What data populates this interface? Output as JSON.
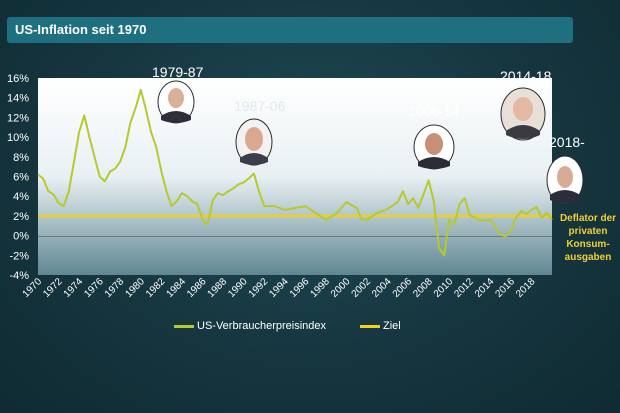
{
  "title": "US-Inflation seit 1970",
  "colors": {
    "cpi": "#b8c82e",
    "target": "#f0d020",
    "deflator_text": "#f0d030"
  },
  "annotations": [
    {
      "label": "1979-87",
      "icon": "portrait-icon"
    },
    {
      "label": "1987-06",
      "icon": "portrait-icon"
    },
    {
      "label": "2006-14",
      "icon": "portrait-icon"
    },
    {
      "label": "2014-18",
      "icon": "portrait-icon"
    },
    {
      "label": "2018-",
      "icon": "portrait-icon"
    }
  ],
  "deflator_note": "Deflator der privaten Konsum-ausgaben",
  "chart_data": {
    "type": "line",
    "title": "US-Inflation seit 1970",
    "xlabel": "",
    "ylabel": "",
    "xlim": [
      1970,
      2020
    ],
    "ylim": [
      -4,
      16
    ],
    "y_ticks": [
      -4,
      -2,
      0,
      2,
      4,
      6,
      8,
      10,
      12,
      14,
      16
    ],
    "y_tick_labels": [
      "-4%",
      "-2%",
      "0%",
      "2%",
      "4%",
      "6%",
      "8%",
      "10%",
      "12%",
      "14%",
      "16%"
    ],
    "x_ticks": [
      1970,
      1972,
      1974,
      1976,
      1978,
      1980,
      1982,
      1984,
      1986,
      1988,
      1990,
      1992,
      1994,
      1996,
      1998,
      2000,
      2002,
      2004,
      2006,
      2008,
      2010,
      2012,
      2014,
      2016,
      2018
    ],
    "x_tick_labels": [
      "1970",
      "1972",
      "1974",
      "1976",
      "1978",
      "1980",
      "1982",
      "1984",
      "1986",
      "1988",
      "1990",
      "1992",
      "1994",
      "1996",
      "1998",
      "2000",
      "2002",
      "2004",
      "2006",
      "2008",
      "2010",
      "2012",
      "2014",
      "2016",
      "2018"
    ],
    "grid": false,
    "legend_position": "bottom",
    "series": [
      {
        "name": "US-Verbraucherpreisindex",
        "x": [
          1970,
          1970.5,
          1971,
          1971.5,
          1972,
          1972.5,
          1973,
          1973.5,
          1974,
          1974.5,
          1975,
          1975.5,
          1976,
          1976.5,
          1977,
          1977.5,
          1978,
          1978.5,
          1979,
          1979.5,
          1980,
          1980.5,
          1981,
          1981.5,
          1982,
          1982.5,
          1983,
          1983.5,
          1984,
          1984.5,
          1985,
          1985.5,
          1986,
          1986.5,
          1987,
          1987.5,
          1988,
          1988.5,
          1989,
          1989.5,
          1990,
          1990.5,
          1991,
          1991.5,
          1992,
          1993,
          1994,
          1995,
          1996,
          1997,
          1998,
          1999,
          2000,
          2001,
          2001.5,
          2002,
          2003,
          2004,
          2005,
          2005.5,
          2006,
          2006.5,
          2007,
          2007.5,
          2008,
          2008.5,
          2009,
          2009.5,
          2010,
          2010.5,
          2011,
          2011.5,
          2012,
          2013,
          2014,
          2015,
          2015.5,
          2016,
          2016.5,
          2017,
          2017.5,
          2018,
          2018.5,
          2019,
          2019.5,
          2020
        ],
        "y": [
          6.2,
          5.8,
          4.5,
          4.2,
          3.3,
          3.0,
          4.5,
          7.5,
          10.5,
          12.2,
          10.0,
          8.0,
          6.0,
          5.5,
          6.5,
          6.8,
          7.5,
          9.0,
          11.5,
          13.0,
          14.8,
          12.8,
          10.5,
          9.0,
          6.5,
          4.5,
          3.0,
          3.5,
          4.3,
          4.0,
          3.5,
          3.2,
          1.6,
          1.1,
          3.6,
          4.3,
          4.1,
          4.5,
          4.8,
          5.2,
          5.4,
          5.8,
          6.3,
          4.5,
          3.0,
          3.0,
          2.6,
          2.8,
          3.0,
          2.3,
          1.6,
          2.2,
          3.4,
          2.8,
          1.6,
          1.6,
          2.3,
          2.7,
          3.4,
          4.5,
          3.2,
          3.8,
          2.8,
          4.2,
          5.6,
          3.5,
          -1.2,
          -2.0,
          1.6,
          1.1,
          3.2,
          3.8,
          2.1,
          1.5,
          1.6,
          0.1,
          -0.1,
          0.5,
          1.8,
          2.5,
          2.2,
          2.6,
          2.9,
          1.8,
          2.3,
          1.6
        ]
      },
      {
        "name": "Ziel",
        "x": [
          1970,
          2020
        ],
        "y": [
          2,
          2
        ]
      }
    ]
  }
}
